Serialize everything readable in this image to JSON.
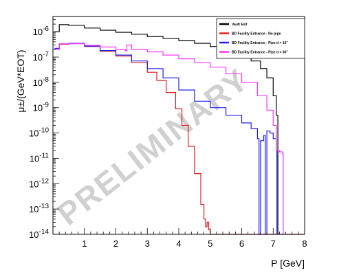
{
  "chart_data": {
    "type": "line",
    "xlabel": "P [GeV]",
    "ylabel": "μ±/(GeV*EOT)",
    "xlim": [
      0,
      8
    ],
    "ylim": [
      1e-14,
      4e-06
    ],
    "yscale": "log",
    "x_ticks": [
      1,
      2,
      3,
      4,
      5,
      6,
      7,
      8
    ],
    "y_ticks": [
      {
        "value": 1e-14,
        "base": "10",
        "exp": "-14"
      },
      {
        "value": 1e-13,
        "base": "10",
        "exp": "-13"
      },
      {
        "value": 1e-12,
        "base": "10",
        "exp": "-12"
      },
      {
        "value": 1e-11,
        "base": "10",
        "exp": "-11"
      },
      {
        "value": 1e-10,
        "base": "10",
        "exp": "-10"
      },
      {
        "value": 1e-09,
        "base": "10",
        "exp": "-9"
      },
      {
        "value": 1e-08,
        "base": "10",
        "exp": "-8"
      },
      {
        "value": 1e-07,
        "base": "10",
        "exp": "-7"
      },
      {
        "value": 1e-06,
        "base": "10",
        "exp": "-6"
      }
    ],
    "watermark": "PRELIMINARY",
    "legend_position": "top-right",
    "series": [
      {
        "name": "Vault Exit",
        "color": "#000000",
        "x": [
          0.05,
          0.2,
          0.5,
          1.0,
          1.5,
          2.0,
          2.5,
          3.0,
          3.5,
          4.0,
          4.5,
          5.0,
          5.5,
          6.0,
          6.3,
          6.6,
          6.8,
          7.0,
          7.1,
          7.15
        ],
        "y": [
          1e-06,
          1.9e-06,
          1.8e-06,
          1.4e-06,
          1.15e-06,
          9.5e-07,
          8e-07,
          6.5e-07,
          5.5e-07,
          4.5e-07,
          3.5e-07,
          2.6e-07,
          1.8e-07,
          1.1e-07,
          7e-08,
          3.5e-08,
          1.5e-08,
          3e-09,
          5e-10,
          1e-14
        ]
      },
      {
        "name": "BD Facility Entrance - No pipe",
        "color": "#e41a1c",
        "x": [
          0.05,
          0.2,
          0.5,
          1.0,
          1.5,
          2.0,
          2.5,
          3.0,
          3.3,
          3.6,
          3.9,
          4.1,
          4.3,
          4.5,
          4.7,
          4.8,
          4.85,
          4.9,
          4.95,
          5.0,
          8.0
        ],
        "y": [
          2e-07,
          3.2e-07,
          3.4e-07,
          2.6e-07,
          1.7e-07,
          1.1e-07,
          6e-08,
          2.5e-08,
          1.2e-08,
          4e-09,
          9e-10,
          2e-10,
          3e-11,
          2.5e-12,
          1.5e-13,
          4e-14,
          2e-14,
          3e-14,
          1.5e-14,
          1e-14,
          1e-14
        ]
      },
      {
        "name": "BD Facility Entrance - Pipe d = 10\"",
        "color": "#1f1fff",
        "x": [
          0.05,
          0.2,
          0.5,
          1.0,
          1.5,
          2.0,
          2.5,
          3.0,
          3.5,
          4.0,
          4.5,
          5.0,
          5.5,
          6.0,
          6.3,
          6.5,
          6.55,
          6.6,
          6.7,
          6.75,
          6.8,
          6.9,
          7.0,
          7.1,
          7.12
        ],
        "y": [
          2.2e-07,
          3.3e-07,
          3.5e-07,
          2.7e-07,
          1.8e-07,
          1.2e-07,
          7e-08,
          3.5e-08,
          1.5e-08,
          5e-09,
          1.8e-09,
          1e-09,
          5e-10,
          2.5e-10,
          1.5e-10,
          6e-11,
          1e-14,
          5e-11,
          8e-11,
          1e-14,
          1.2e-10,
          1e-10,
          6e-11,
          2e-11,
          1e-14
        ]
      },
      {
        "name": "BD Facility Entrance - Pipe d = 30\"",
        "color": "#ff33ff",
        "x": [
          0.05,
          0.2,
          0.5,
          1.0,
          1.5,
          2.0,
          2.3,
          2.35,
          2.5,
          3.0,
          3.5,
          4.0,
          4.5,
          5.0,
          5.5,
          6.0,
          6.5,
          6.8,
          7.0,
          7.1,
          7.2,
          7.3,
          7.32
        ],
        "y": [
          2e-07,
          3.3e-07,
          3.4e-07,
          2.9e-07,
          2.5e-07,
          2e-07,
          1.8e-07,
          3e-07,
          2e-07,
          1.6e-07,
          1.2e-07,
          8.5e-08,
          6e-08,
          4e-08,
          2.2e-08,
          1e-08,
          3e-09,
          8e-10,
          2e-10,
          2e-11,
          1.8e-11,
          1.5e-11,
          1e-14
        ]
      }
    ]
  }
}
